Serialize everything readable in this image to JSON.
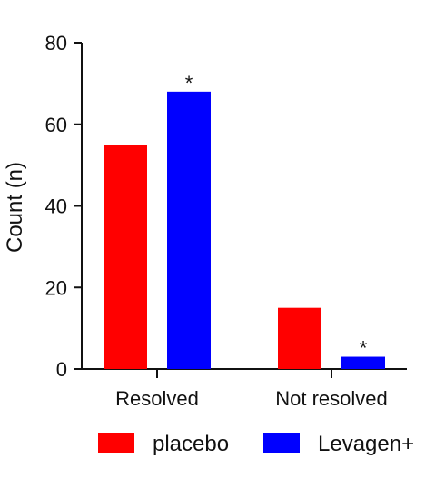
{
  "chart_data": {
    "type": "bar",
    "title": "",
    "xlabel": "",
    "ylabel": "Count (n)",
    "categories": [
      "Resolved",
      "Not resolved"
    ],
    "series": [
      {
        "name": "placebo",
        "color": "#ff0000",
        "values": [
          55,
          15
        ]
      },
      {
        "name": "Levagen+",
        "color": "#0000ff",
        "values": [
          68,
          3
        ]
      }
    ],
    "annotations": [
      {
        "category": "Resolved",
        "series": "Levagen+",
        "text": "*"
      },
      {
        "category": "Not resolved",
        "series": "Levagen+",
        "text": "*"
      }
    ],
    "ylim": [
      0,
      80
    ],
    "yticks": [
      0,
      20,
      40,
      60,
      80
    ],
    "grid": false,
    "legend_position": "bottom"
  }
}
